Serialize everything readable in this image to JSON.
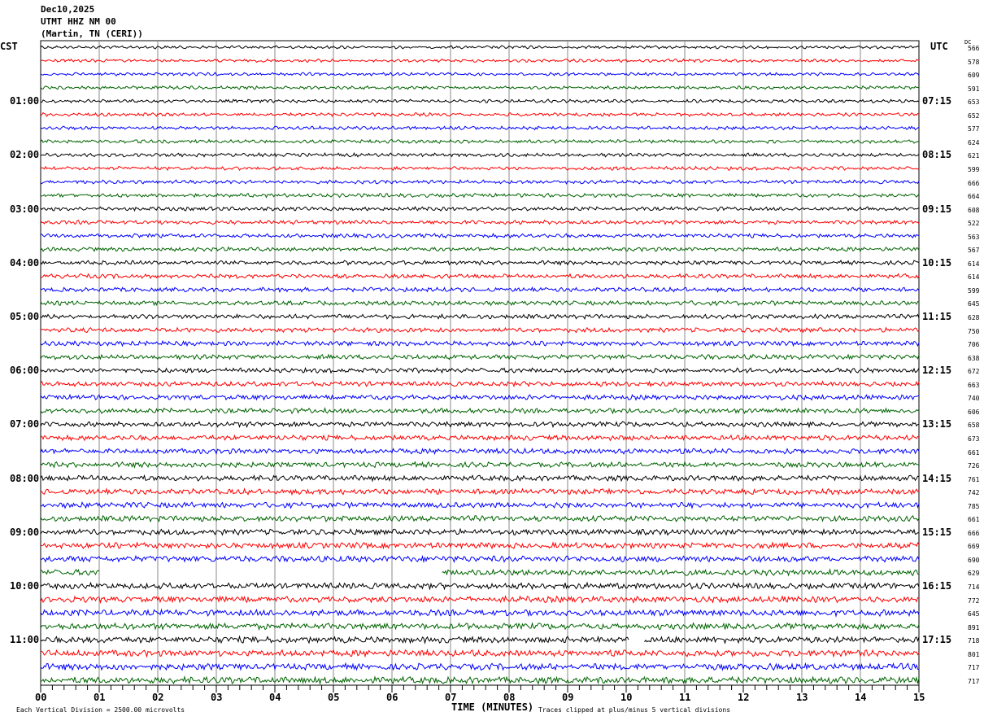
{
  "header": {
    "date": "Dec10,2025",
    "station": "UTMT HHZ NM 00",
    "location": "(Martin, TN (CERI))"
  },
  "left_tz": "CST",
  "right_tz": "UTC",
  "dc_header": "DC",
  "chart_data": {
    "type": "line",
    "title": "",
    "xlabel": "TIME (MINUTES)",
    "xlim": [
      0,
      15
    ],
    "x_ticks": [
      "00",
      "01",
      "02",
      "03",
      "04",
      "05",
      "06",
      "07",
      "08",
      "09",
      "10",
      "11",
      "12",
      "13",
      "14",
      "15"
    ],
    "grid": true,
    "trace_colors": [
      "#000000",
      "#ff0000",
      "#0000ff",
      "#006400"
    ],
    "left_labels": [
      {
        "row": 4,
        "text": "01:00"
      },
      {
        "row": 8,
        "text": "02:00"
      },
      {
        "row": 12,
        "text": "03:00"
      },
      {
        "row": 16,
        "text": "04:00"
      },
      {
        "row": 20,
        "text": "05:00"
      },
      {
        "row": 24,
        "text": "06:00"
      },
      {
        "row": 28,
        "text": "07:00"
      },
      {
        "row": 32,
        "text": "08:00"
      },
      {
        "row": 36,
        "text": "09:00"
      },
      {
        "row": 40,
        "text": "10:00"
      },
      {
        "row": 44,
        "text": "11:00"
      }
    ],
    "right_labels": [
      {
        "row": 4,
        "text": "07:15"
      },
      {
        "row": 8,
        "text": "08:15"
      },
      {
        "row": 12,
        "text": "09:15"
      },
      {
        "row": 16,
        "text": "10:15"
      },
      {
        "row": 20,
        "text": "11:15"
      },
      {
        "row": 24,
        "text": "12:15"
      },
      {
        "row": 28,
        "text": "13:15"
      },
      {
        "row": 32,
        "text": "14:15"
      },
      {
        "row": 36,
        "text": "15:15"
      },
      {
        "row": 40,
        "text": "16:15"
      },
      {
        "row": 44,
        "text": "17:15"
      }
    ],
    "dc_values": [
      "566",
      "578",
      "609",
      "591",
      "653",
      "652",
      "577",
      "624",
      "621",
      "599",
      "666",
      "664",
      "608",
      "522",
      "563",
      "567",
      "614",
      "614",
      "599",
      "645",
      "628",
      "750",
      "706",
      "638",
      "672",
      "663",
      "740",
      "606",
      "658",
      "673",
      "661",
      "726",
      "761",
      "742",
      "785",
      "661",
      "666",
      "669",
      "690",
      "629",
      "714",
      "772",
      "645",
      "891",
      "718",
      "801",
      "717",
      "717"
    ],
    "gaps": [
      {
        "row": 39,
        "from": 1.0,
        "to": 6.85
      },
      {
        "row": 44,
        "from": 10.05,
        "to": 10.3
      }
    ],
    "footer_left": "Each Vertical Division = 2500.00 microvolts",
    "footer_right": "Traces clipped at plus/minus 5 vertical divisions"
  }
}
